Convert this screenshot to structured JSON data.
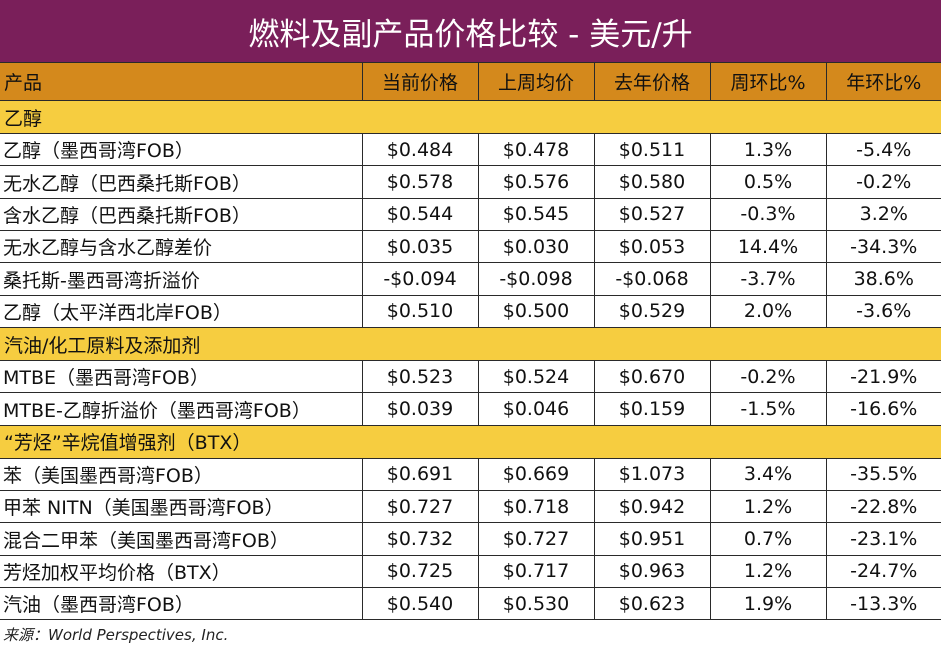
{
  "title": "燃料及副产品价格比较 - 美元/升",
  "headers": [
    "产品",
    "当前价格",
    "上周均价",
    "去年价格",
    "周环比%",
    "年环比%"
  ],
  "sections": [
    {
      "name": "乙醇",
      "rows": [
        [
          "乙醇（墨西哥湾FOB）",
          "$0.484",
          "$0.478",
          "$0.511",
          "1.3%",
          "-5.4%"
        ],
        [
          "无水乙醇（巴西桑托斯FOB）",
          "$0.578",
          "$0.576",
          "$0.580",
          "0.5%",
          "-0.2%"
        ],
        [
          "含水乙醇（巴西桑托斯FOB）",
          "$0.544",
          "$0.545",
          "$0.527",
          "-0.3%",
          "3.2%"
        ],
        [
          "无水乙醇与含水乙醇差价",
          "$0.035",
          "$0.030",
          "$0.053",
          "14.4%",
          "-34.3%"
        ],
        [
          "桑托斯-墨西哥湾折溢价",
          "-$0.094",
          "-$0.098",
          "-$0.068",
          "-3.7%",
          "38.6%"
        ],
        [
          "乙醇（太平洋西北岸FOB）",
          "$0.510",
          "$0.500",
          "$0.529",
          "2.0%",
          "-3.6%"
        ]
      ]
    },
    {
      "name": "汽油/化工原料及添加剂",
      "rows": [
        [
          "MTBE（墨西哥湾FOB）",
          "$0.523",
          "$0.524",
          "$0.670",
          "-0.2%",
          "-21.9%"
        ],
        [
          "MTBE-乙醇折溢价（墨西哥湾FOB）",
          "$0.039",
          "$0.046",
          "$0.159",
          "-1.5%",
          "-16.6%"
        ]
      ]
    },
    {
      "name": "“芳烃”辛烷值增强剂（BTX）",
      "rows": [
        [
          "苯（美国墨西哥湾FOB）",
          "$0.691",
          "$0.669",
          "$1.073",
          "3.4%",
          "-35.5%"
        ],
        [
          "甲苯 NITN（美国墨西哥湾FOB）",
          "$0.727",
          "$0.718",
          "$0.942",
          "1.2%",
          "-22.8%"
        ],
        [
          "混合二甲苯（美国墨西哥湾FOB）",
          "$0.732",
          "$0.727",
          "$0.951",
          "0.7%",
          "-23.1%"
        ],
        [
          "芳烃加权平均价格（BTX）",
          "$0.725",
          "$0.717",
          "$0.963",
          "1.2%",
          "-24.7%"
        ],
        [
          "汽油（墨西哥湾FOB）",
          "$0.540",
          "$0.530",
          "$0.623",
          "1.9%",
          "-13.3%"
        ]
      ]
    }
  ],
  "source": "来源：World Perspectives, Inc.",
  "colors": {
    "title_bg": "#7a1f5a",
    "header_bg": "#d4891c",
    "section_bg": "#f6cd40"
  }
}
